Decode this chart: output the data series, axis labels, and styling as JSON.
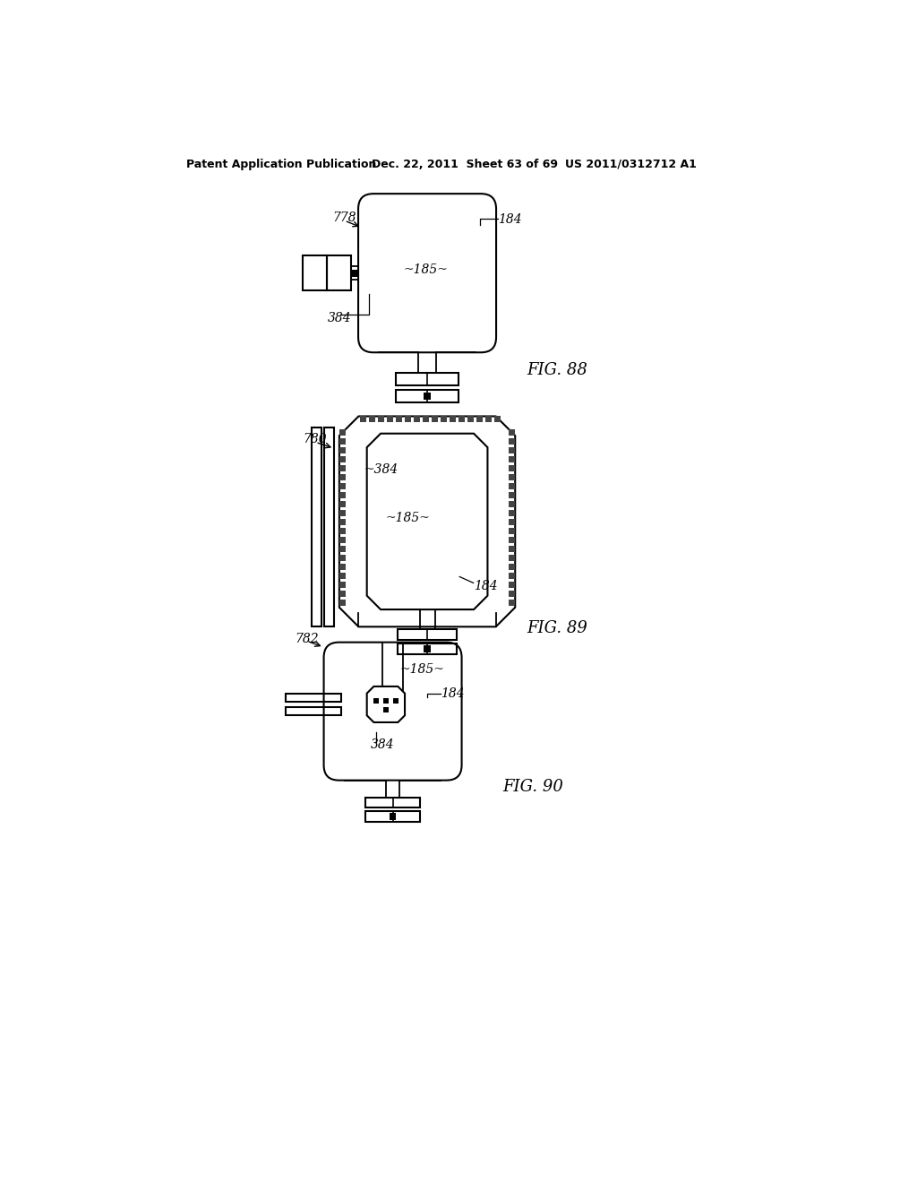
{
  "bg_color": "#ffffff",
  "line_color": "#000000",
  "header_left": "Patent Application Publication",
  "header_mid": "Dec. 22, 2011  Sheet 63 of 69",
  "header_right": "US 2011/0312712 A1",
  "fig88_label": "FIG. 88",
  "fig89_label": "FIG. 89",
  "fig90_label": "FIG. 90"
}
